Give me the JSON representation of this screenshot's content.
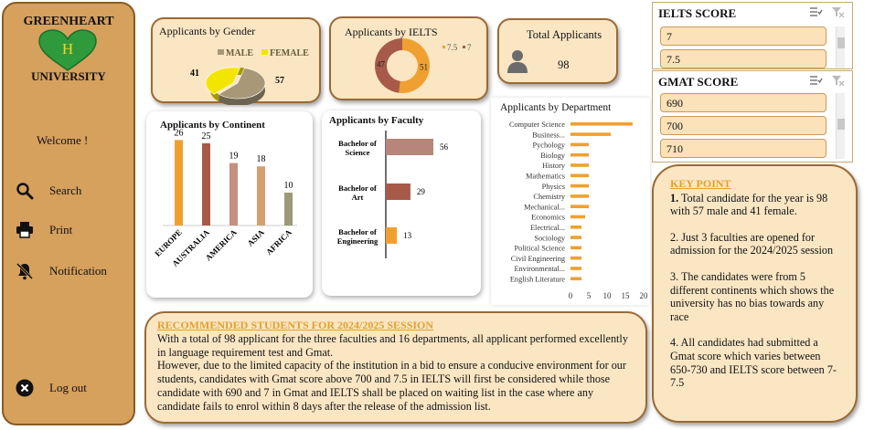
{
  "brand": {
    "name_top": "GREENHEART",
    "heart_letter": "H",
    "name_bottom": "UNIVERSITY"
  },
  "sidebar": {
    "welcome": "Welcome !",
    "items": [
      {
        "label": "Search",
        "icon": "search-icon"
      },
      {
        "label": "Print",
        "icon": "printer-icon"
      },
      {
        "label": "Notification",
        "icon": "notification-off-icon"
      }
    ],
    "logout": "Log out"
  },
  "colors": {
    "sidebar": "#d6a05d",
    "card": "#fbe6c4",
    "accent": "#e3a02c",
    "green": "#3aa845",
    "brown": "#a05a48"
  },
  "gender_card": {
    "title": "Applicants by Gender"
  },
  "ielts_card": {
    "title": "Applicants by IELTS"
  },
  "total_card": {
    "title": "Total Applicants",
    "value": "98"
  },
  "continent_card": {
    "title": "Applicants by Continent"
  },
  "faculty_card": {
    "title": "Applicants by Faculty"
  },
  "department_card": {
    "title": "Applicants by Department"
  },
  "slicers": {
    "ielts": {
      "title": "IELTS SCORE",
      "items": [
        "7",
        "7.5"
      ]
    },
    "gmat": {
      "title": "GMAT SCORE",
      "items": [
        "690",
        "700",
        "710"
      ]
    }
  },
  "key_point": {
    "heading": "KEY POINT",
    "p1_num": "1.",
    "p1": " Total candidate for the year is 98 with 57 male and 41 female.",
    "p2": "2. Just 3 faculties are opened for admission for the 2024/2025 session",
    "p3": "3. The candidates were from 5 different continents which shows the university has no bias towards any race",
    "p4": "4. All candidates had submitted a Gmat score which varies between 650-730 and IELTS score between 7-7.5"
  },
  "recommendation": {
    "heading": "RECOMMENDED STUDENTS FOR 2024/2025 SESSION",
    "p1": "With a total of 98 applicant for the three faculties and 16 departments, all applicant performed excellently in language requirement test and Gmat.",
    "p2": "However, due to the limited capacity of the institution in a bid to ensure a conducive environment for our students, candidates with Gmat score above 700 and 7.5 in IELTS  will first be considered while those candidate with 690 and 7 in Gmat and IELTS shall be placed on waiting list in the case where any candidate fails to enrol within 8 days after the release of the admission list."
  },
  "chart_data": [
    {
      "type": "pie",
      "title": "Applicants by Gender",
      "categories": [
        "MALE",
        "FEMALE"
      ],
      "values": [
        57,
        41
      ],
      "colors": [
        "#a89878",
        "#f2e600"
      ],
      "legend": "top"
    },
    {
      "type": "pie",
      "title": "Applicants by IELTS",
      "categories": [
        "7.5",
        "7"
      ],
      "values": [
        51,
        47
      ],
      "colors": [
        "#f0a030",
        "#a85a48"
      ],
      "legend": "top-right"
    },
    {
      "type": "bar",
      "title": "Applicants by Continent",
      "categories": [
        "EUROPE",
        "AUSTRALIA",
        "AMERICA",
        "ASIA",
        "AFRICA"
      ],
      "values": [
        26,
        25,
        19,
        18,
        10
      ],
      "colors": [
        "#f0a030",
        "#a85a48",
        "#c49080",
        "#d4a070",
        "#9a9a7a"
      ],
      "ylim": [
        0,
        30
      ]
    },
    {
      "type": "bar",
      "orientation": "horizontal",
      "title": "Applicants by Faculty",
      "categories": [
        "Bachelor of Science",
        "Bachelor of Art",
        "Bachelor of Engineering"
      ],
      "values": [
        56,
        29,
        13
      ],
      "colors": [
        "#b8857a",
        "#a85a48",
        "#f0a030"
      ],
      "xlim": [
        0,
        60
      ]
    },
    {
      "type": "bar",
      "orientation": "horizontal",
      "title": "Applicants by Department",
      "categories": [
        "Computer Science",
        "Business...",
        "Pychology",
        "Biology",
        "History",
        "Mathematics",
        "Physics",
        "Chemistry",
        "Mechanical...",
        "Economics",
        "Electrical...",
        "Sociology",
        "Political Science",
        "Civil Engineering",
        "Environmental...",
        "English Literature"
      ],
      "values": [
        17,
        11,
        5,
        5,
        5,
        5,
        5,
        5,
        5,
        4,
        3,
        3,
        3,
        3,
        3,
        3
      ],
      "xticks": [
        "0",
        "5",
        "10",
        "15",
        "20"
      ],
      "xlim": [
        0,
        20
      ],
      "color": "#f0a030"
    }
  ]
}
